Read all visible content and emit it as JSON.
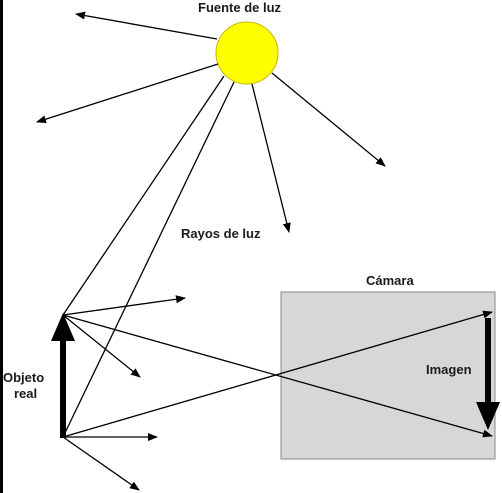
{
  "labels": {
    "light_source": "Fuente de luz",
    "light_rays": "Rayos de luz",
    "camera": "Cámara",
    "image": "Imagen",
    "object_line1": "Objeto",
    "object_line2": "real"
  },
  "colors": {
    "sun_fill": "#ffff00",
    "sun_stroke": "#c8b400",
    "camera_fill": "#d7d7d7",
    "camera_stroke": "#8a8a8a",
    "line": "#000000",
    "left_edge": "#000000"
  }
}
